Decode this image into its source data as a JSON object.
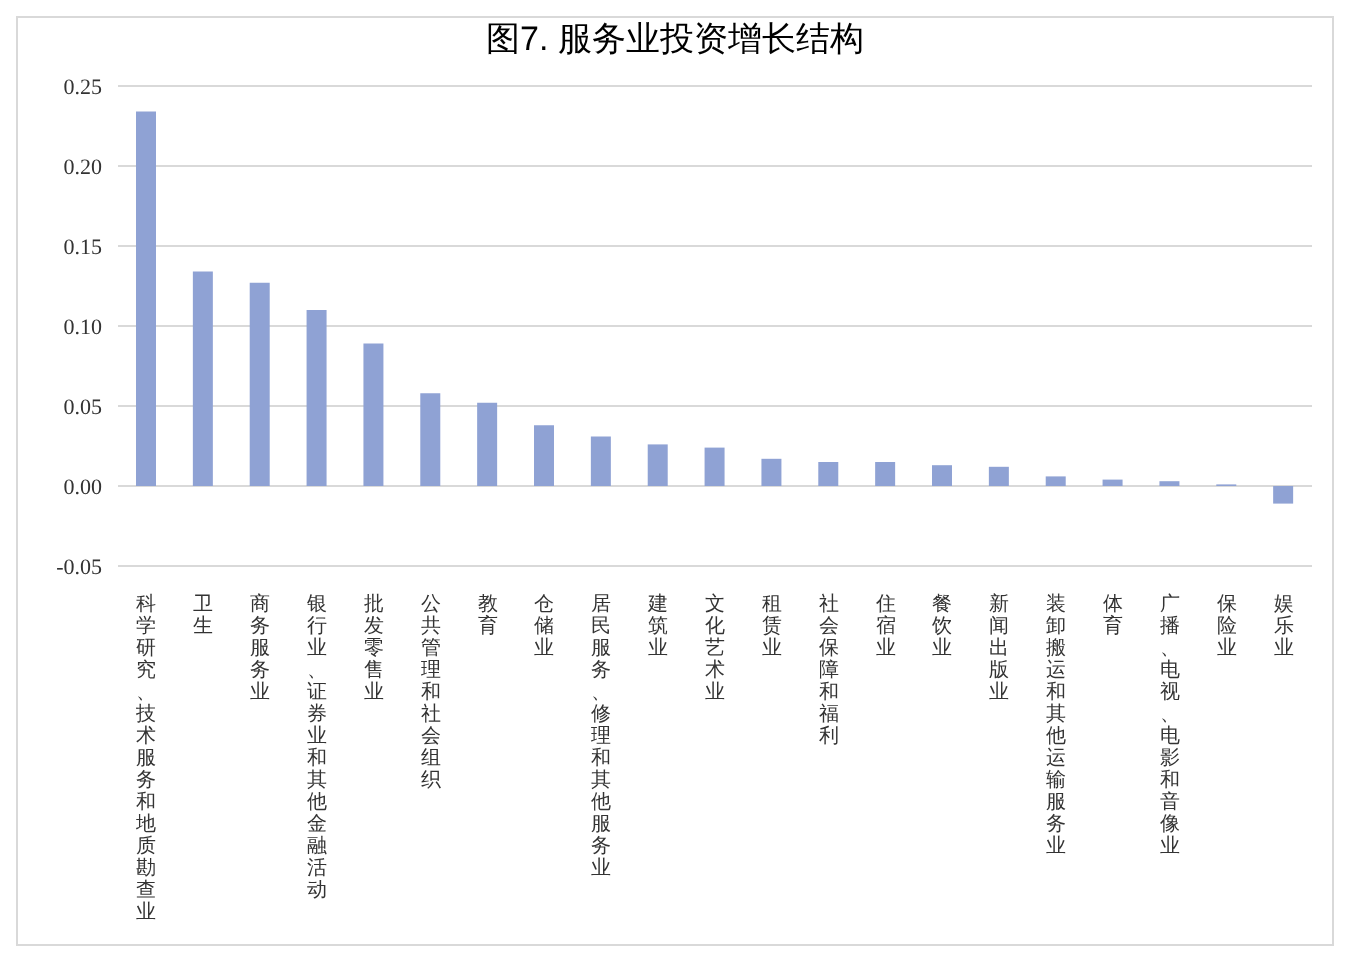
{
  "chart_data": {
    "type": "bar",
    "title": "图7. 服务业投资增长结构",
    "categories": [
      "科学研究、技术服务和地质勘查业",
      "卫生",
      "商务服务业",
      "银行业、证券业和其他金融活动",
      "批发零售业",
      "公共管理和社会组织",
      "教育",
      "仓储业",
      "居民服务、修理和其他服务业",
      "建筑业",
      "文化艺术业",
      "租赁业",
      "社会保障和福利",
      "住宿业",
      "餐饮业",
      "新闻出版业",
      "装卸搬运和其他运输服务业",
      "体育",
      "广播、电视、电影和音像业",
      "保险业",
      "娱乐业"
    ],
    "values": [
      0.234,
      0.134,
      0.127,
      0.11,
      0.089,
      0.058,
      0.052,
      0.038,
      0.031,
      0.026,
      0.024,
      0.017,
      0.015,
      0.015,
      0.013,
      0.012,
      0.006,
      0.004,
      0.003,
      0.001,
      -0.011
    ],
    "color": "#8fa2d4",
    "ylim": [
      -0.05,
      0.25
    ],
    "yticks": [
      {
        "value": -0.05,
        "label": "-0.05"
      },
      {
        "value": 0,
        "label": "0.00"
      },
      {
        "value": 0.05,
        "label": "0.05"
      },
      {
        "value": 0.1,
        "label": "0.10"
      },
      {
        "value": 0.15,
        "label": "0.15"
      },
      {
        "value": 0.2,
        "label": "0.20"
      },
      {
        "value": 0.25,
        "label": "0.25"
      }
    ],
    "grid": "y",
    "legend": false
  }
}
